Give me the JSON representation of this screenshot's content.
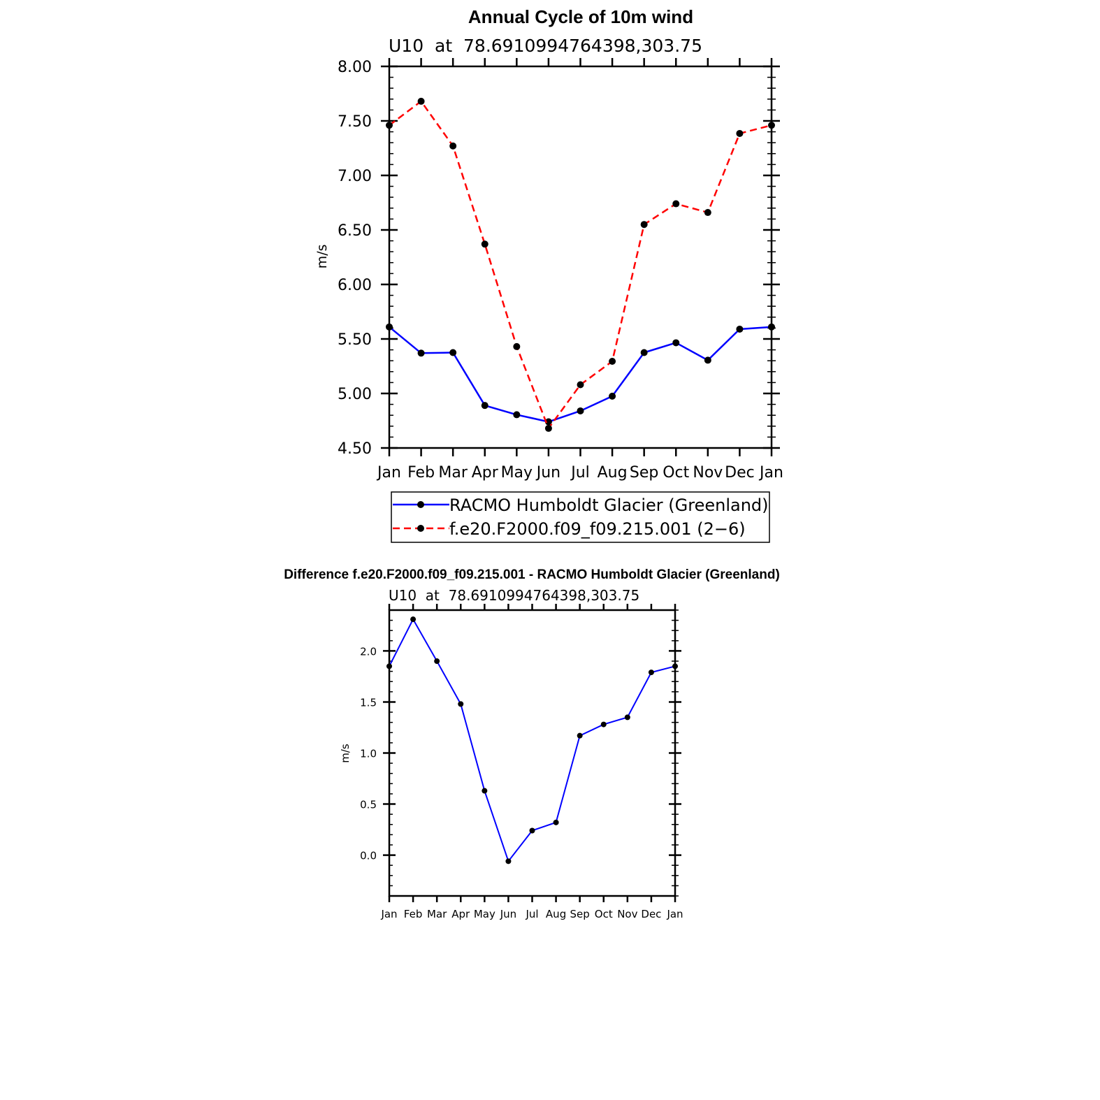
{
  "colors": {
    "racmo": "#0000ff",
    "model": "#ff0000",
    "diff": "#0000ff",
    "marker": "#000000"
  },
  "chart_data": [
    {
      "type": "line",
      "title": "Annual Cycle of 10m wind",
      "subtitle": "U10  at  78.6910994764398,303.75",
      "ylabel": "m/s",
      "xlabel": "",
      "categories": [
        "Jan",
        "Feb",
        "Mar",
        "Apr",
        "May",
        "Jun",
        "Jul",
        "Aug",
        "Sep",
        "Oct",
        "Nov",
        "Dec",
        "Jan"
      ],
      "ylim": [
        4.5,
        8.0
      ],
      "yticks": [
        "4.50",
        "5.00",
        "5.50",
        "6.00",
        "6.50",
        "7.00",
        "7.50",
        "8.00"
      ],
      "legend_position": "below",
      "series": [
        {
          "name": "RACMO Humboldt Glacier (Greenland)",
          "style": "solid",
          "values": [
            5.61,
            5.37,
            5.375,
            4.89,
            4.805,
            4.74,
            4.84,
            4.975,
            5.375,
            5.465,
            5.305,
            5.59,
            5.61
          ]
        },
        {
          "name": "f.e20.F2000.f09_f09.215.001 (2−6)",
          "style": "dashed",
          "values": [
            7.46,
            7.68,
            7.27,
            6.37,
            5.43,
            4.68,
            5.08,
            5.295,
            6.55,
            6.74,
            6.66,
            7.385,
            7.46
          ]
        }
      ]
    },
    {
      "type": "line",
      "title": "Difference f.e20.F2000.f09_f09.215.001 - RACMO Humboldt Glacier (Greenland)",
      "subtitle": "U10  at  78.6910994764398,303.75",
      "ylabel": "m/s",
      "xlabel": "",
      "categories": [
        "Jan",
        "Feb",
        "Mar",
        "Apr",
        "May",
        "Jun",
        "Jul",
        "Aug",
        "Sep",
        "Oct",
        "Nov",
        "Dec",
        "Jan"
      ],
      "ylim": [
        -0.4,
        2.4
      ],
      "yticks": [
        "0.0",
        "0.5",
        "1.0",
        "1.5",
        "2.0"
      ],
      "series": [
        {
          "values": [
            1.85,
            2.31,
            1.9,
            1.48,
            0.63,
            -0.06,
            0.24,
            0.32,
            1.17,
            1.28,
            1.35,
            1.79,
            1.85
          ]
        }
      ]
    }
  ]
}
